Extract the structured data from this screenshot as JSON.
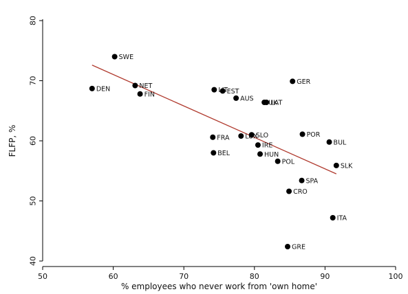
{
  "chart_data": {
    "type": "scatter",
    "xlabel": "% employees who never work from 'own home'",
    "ylabel": "FLFP, %",
    "xlim": [
      50,
      100
    ],
    "ylim": [
      40,
      80
    ],
    "xticks": [
      50,
      60,
      70,
      80,
      90,
      100
    ],
    "yticks": [
      40,
      50,
      60,
      70,
      80
    ],
    "grid": false,
    "marker_color": "#000000",
    "fit_line_color": "#b03a2e",
    "points": [
      {
        "label": "SWE",
        "x": 60.2,
        "y": 74.0
      },
      {
        "label": "DEN",
        "x": 57.0,
        "y": 68.7
      },
      {
        "label": "NET",
        "x": 63.1,
        "y": 69.2
      },
      {
        "label": "FIN",
        "x": 63.8,
        "y": 67.8
      },
      {
        "label": "LIT",
        "x": 74.3,
        "y": 68.5
      },
      {
        "label": "EST",
        "x": 75.5,
        "y": 68.3
      },
      {
        "label": "AUS",
        "x": 77.4,
        "y": 67.1
      },
      {
        "label": "UK",
        "x": 81.4,
        "y": 66.4
      },
      {
        "label": "LAT",
        "x": 81.7,
        "y": 66.4
      },
      {
        "label": "GER",
        "x": 85.4,
        "y": 69.9
      },
      {
        "label": "FRA",
        "x": 74.1,
        "y": 60.6
      },
      {
        "label": "LUX",
        "x": 78.1,
        "y": 60.8
      },
      {
        "label": "SLO",
        "x": 79.6,
        "y": 61.0
      },
      {
        "label": "IRE",
        "x": 80.5,
        "y": 59.3
      },
      {
        "label": "HUN",
        "x": 80.8,
        "y": 57.8
      },
      {
        "label": "BEL",
        "x": 74.2,
        "y": 58.0
      },
      {
        "label": "POL",
        "x": 83.3,
        "y": 56.6
      },
      {
        "label": "POR",
        "x": 86.8,
        "y": 61.1
      },
      {
        "label": "BUL",
        "x": 90.6,
        "y": 59.8
      },
      {
        "label": "SLK",
        "x": 91.6,
        "y": 55.9
      },
      {
        "label": "SPA",
        "x": 86.7,
        "y": 53.4
      },
      {
        "label": "CRO",
        "x": 84.9,
        "y": 51.6
      },
      {
        "label": "ITA",
        "x": 91.1,
        "y": 47.2
      },
      {
        "label": "GRE",
        "x": 84.7,
        "y": 42.4
      }
    ],
    "fit_line": {
      "x": [
        57.0,
        91.6
      ],
      "y": [
        72.6,
        54.5
      ]
    }
  }
}
